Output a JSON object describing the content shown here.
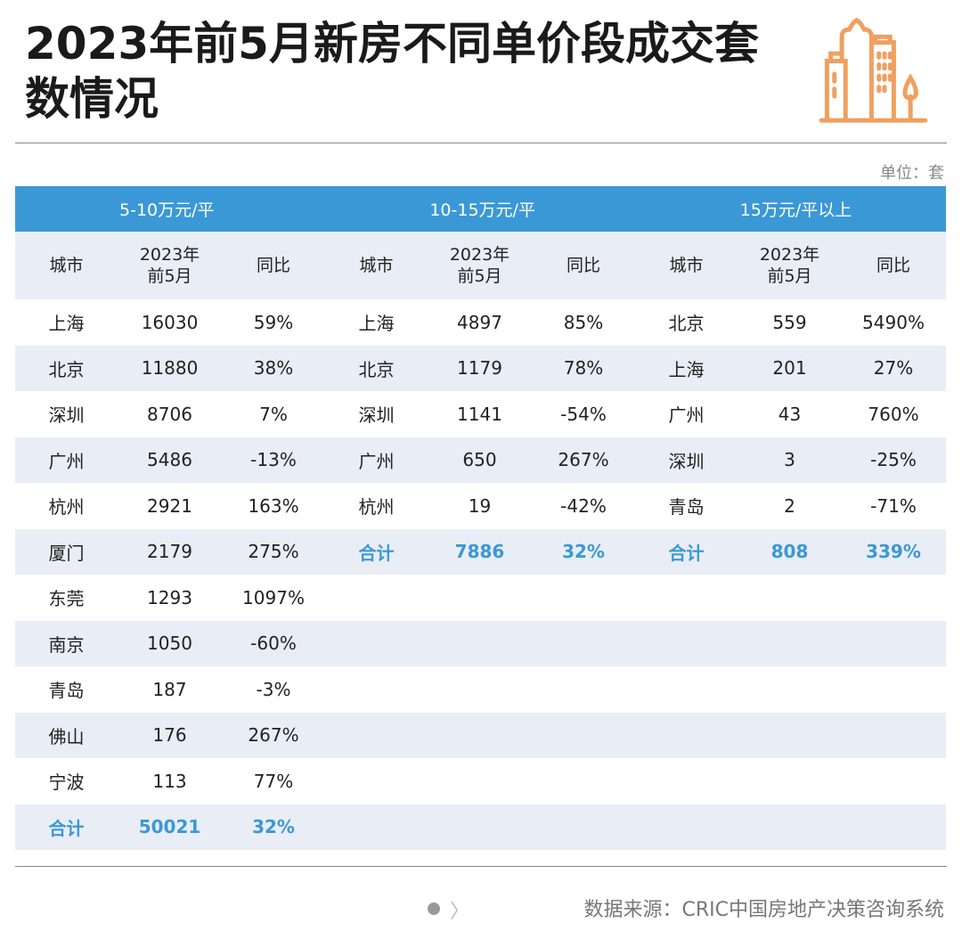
{
  "title": "2023年前5月新房不同单价段成交套数情况",
  "unit": "单位：套",
  "source": "数据来源：CRIC中国房地产决策咨询系统",
  "colors": {
    "accent": "#3b98d6",
    "stripe": "#e9edf5",
    "icon": "#f0a060"
  },
  "columns": [
    "城市",
    "2023年\n前5月",
    "同比"
  ],
  "groups": [
    {
      "header": "5-10万元/平",
      "rows": [
        [
          "上海",
          "16030",
          "59%"
        ],
        [
          "北京",
          "11880",
          "38%"
        ],
        [
          "深圳",
          "8706",
          "7%"
        ],
        [
          "广州",
          "5486",
          "-13%"
        ],
        [
          "杭州",
          "2921",
          "163%"
        ],
        [
          "厦门",
          "2179",
          "275%"
        ],
        [
          "东莞",
          "1293",
          "1097%"
        ],
        [
          "南京",
          "1050",
          "-60%"
        ],
        [
          "青岛",
          "187",
          "-3%"
        ],
        [
          "佛山",
          "176",
          "267%"
        ],
        [
          "宁波",
          "113",
          "77%"
        ]
      ],
      "total": [
        "合计",
        "50021",
        "32%"
      ]
    },
    {
      "header": "10-15万元/平",
      "rows": [
        [
          "上海",
          "4897",
          "85%"
        ],
        [
          "北京",
          "1179",
          "78%"
        ],
        [
          "深圳",
          "1141",
          "-54%"
        ],
        [
          "广州",
          "650",
          "267%"
        ],
        [
          "杭州",
          "19",
          "-42%"
        ]
      ],
      "total": [
        "合计",
        "7886",
        "32%"
      ]
    },
    {
      "header": "15万元/平以上",
      "rows": [
        [
          "北京",
          "559",
          "5490%"
        ],
        [
          "上海",
          "201",
          "27%"
        ],
        [
          "广州",
          "43",
          "760%"
        ],
        [
          "深圳",
          "3",
          "-25%"
        ],
        [
          "青岛",
          "2",
          "-71%"
        ]
      ],
      "total": [
        "合计",
        "808",
        "339%"
      ]
    }
  ]
}
